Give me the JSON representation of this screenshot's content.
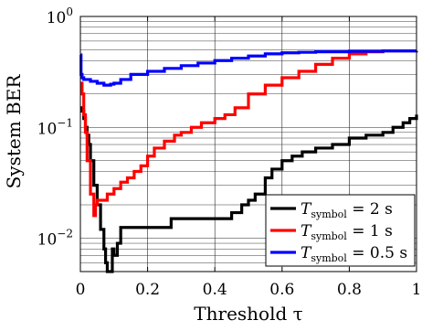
{
  "chart_data": {
    "type": "line",
    "xlabel": "Threshold τ",
    "ylabel": "System BER",
    "xscale": "linear",
    "yscale": "log",
    "xlim": [
      0,
      1
    ],
    "ylim": [
      0.005,
      1
    ],
    "grid": true,
    "legend_position": "bottom-right",
    "x_ticks": [
      {
        "value": 0,
        "label": "0"
      },
      {
        "value": 0.2,
        "label": "0.2"
      },
      {
        "value": 0.4,
        "label": "0.4"
      },
      {
        "value": 0.6,
        "label": "0.6"
      },
      {
        "value": 0.8,
        "label": "0.8"
      },
      {
        "value": 1,
        "label": "1"
      }
    ],
    "y_ticks": [
      {
        "value": 1,
        "base": "10",
        "exp": "0"
      },
      {
        "value": 0.1,
        "base": "10",
        "exp": "−1"
      },
      {
        "value": 0.01,
        "base": "10",
        "exp": "−2"
      }
    ],
    "series": [
      {
        "name": "T_symbol = 2 s",
        "label_main": "T",
        "label_sub": "symbol",
        "label_rest": " = 2 s",
        "color": "#000000",
        "x": [
          0.0,
          0.005,
          0.01,
          0.015,
          0.02,
          0.025,
          0.03,
          0.04,
          0.05,
          0.06,
          0.07,
          0.075,
          0.08,
          0.09,
          0.095,
          0.1,
          0.11,
          0.12,
          0.14,
          0.16,
          0.18,
          0.2,
          0.22,
          0.24,
          0.27,
          0.3,
          0.35,
          0.4,
          0.45,
          0.48,
          0.5,
          0.52,
          0.55,
          0.57,
          0.6,
          0.63,
          0.66,
          0.7,
          0.75,
          0.8,
          0.85,
          0.9,
          0.93,
          0.96,
          0.98,
          1.0
        ],
        "y": [
          0.15,
          0.14,
          0.12,
          0.1,
          0.085,
          0.07,
          0.05,
          0.03,
          0.02,
          0.012,
          0.008,
          0.006,
          0.005,
          0.005,
          0.008,
          0.007,
          0.009,
          0.0125,
          0.0125,
          0.0125,
          0.0125,
          0.0125,
          0.0125,
          0.0125,
          0.015,
          0.015,
          0.015,
          0.015,
          0.017,
          0.02,
          0.022,
          0.025,
          0.035,
          0.042,
          0.05,
          0.055,
          0.06,
          0.065,
          0.07,
          0.08,
          0.085,
          0.09,
          0.1,
          0.11,
          0.12,
          0.13
        ]
      },
      {
        "name": "T_symbol = 1 s",
        "label_main": "T",
        "label_sub": "symbol",
        "label_rest": " = 1 s",
        "color": "#ff0000",
        "x": [
          0.0,
          0.005,
          0.01,
          0.015,
          0.02,
          0.03,
          0.04,
          0.045,
          0.05,
          0.06,
          0.07,
          0.08,
          0.09,
          0.1,
          0.12,
          0.14,
          0.16,
          0.18,
          0.2,
          0.22,
          0.25,
          0.28,
          0.3,
          0.33,
          0.36,
          0.4,
          0.43,
          0.46,
          0.5,
          0.55,
          0.6,
          0.65,
          0.7,
          0.75,
          0.8,
          0.85,
          0.9,
          1.0
        ],
        "y": [
          0.25,
          0.2,
          0.13,
          0.09,
          0.05,
          0.025,
          0.016,
          0.02,
          0.022,
          0.022,
          0.022,
          0.025,
          0.025,
          0.028,
          0.032,
          0.035,
          0.04,
          0.045,
          0.055,
          0.065,
          0.075,
          0.085,
          0.09,
          0.1,
          0.11,
          0.12,
          0.13,
          0.15,
          0.2,
          0.24,
          0.28,
          0.32,
          0.37,
          0.42,
          0.46,
          0.48,
          0.49,
          0.49
        ]
      },
      {
        "name": "T_symbol = 0.5 s",
        "label_main": "T",
        "label_sub": "symbol",
        "label_rest": " = 0.5 s",
        "color": "#0000ff",
        "x": [
          0.0,
          0.002,
          0.005,
          0.01,
          0.03,
          0.05,
          0.07,
          0.09,
          0.1,
          0.12,
          0.15,
          0.2,
          0.25,
          0.3,
          0.35,
          0.4,
          0.45,
          0.5,
          0.55,
          0.6,
          0.65,
          0.7,
          0.8,
          0.9,
          1.0
        ],
        "y": [
          0.45,
          0.3,
          0.28,
          0.27,
          0.26,
          0.25,
          0.24,
          0.245,
          0.25,
          0.27,
          0.3,
          0.32,
          0.34,
          0.36,
          0.38,
          0.4,
          0.42,
          0.44,
          0.46,
          0.47,
          0.475,
          0.48,
          0.485,
          0.488,
          0.49
        ]
      }
    ]
  }
}
